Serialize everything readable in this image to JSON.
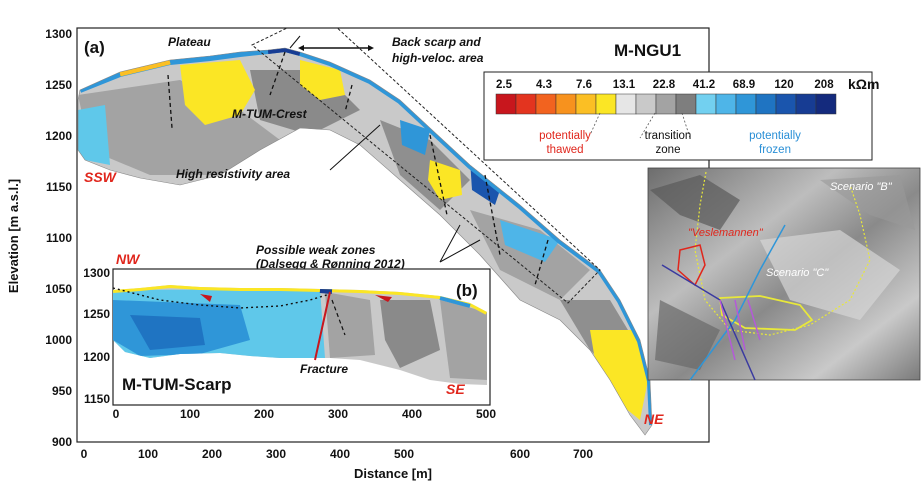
{
  "figure": {
    "panel_a": {
      "label": "(a)",
      "profile_name": "M-NGU1",
      "direction_left": "SSW",
      "direction_right": "NE",
      "xlabel": "Distance [m]",
      "ylabel": "Elevation [m a.s.l.]",
      "x_ticks": [
        "0",
        "100",
        "200",
        "300",
        "400",
        "500",
        "600",
        "700"
      ],
      "y_ticks": [
        "1300",
        "1250",
        "1200",
        "1150",
        "1100",
        "1050",
        "1000",
        "950",
        "900"
      ],
      "annotations": {
        "plateau": "Plateau",
        "back_scarp_1": "Back scarp and",
        "back_scarp_2": "high-veloc. area",
        "crest": "M-TUM-Crest",
        "high_res": "High resistivity area",
        "weak_1": "Possible weak zones",
        "weak_2": "(Dalsegg & Rønning 2012)"
      }
    },
    "panel_b": {
      "label": "(b)",
      "profile_name": "M-TUM-Scarp",
      "direction_left": "NW",
      "direction_right": "SE",
      "x_ticks": [
        "0",
        "100",
        "200",
        "300",
        "400",
        "500"
      ],
      "y_ticks": [
        "1300",
        "1250",
        "1200",
        "1150"
      ],
      "fracture": "Fracture"
    },
    "legend": {
      "unit": "kΩm",
      "values": [
        "2.5",
        "4.3",
        "7.6",
        "13.1",
        "22.8",
        "41.2",
        "68.9",
        "120",
        "208"
      ],
      "thawed_1": "potentially",
      "thawed_2": "thawed",
      "transition_1": "transition",
      "transition_2": "zone",
      "frozen_1": "potentially",
      "frozen_2": "frozen",
      "colors": [
        "#c8161d",
        "#e3341f",
        "#f2631f",
        "#f7921e",
        "#fbbf24",
        "#fbe625",
        "#e6e6e6",
        "#c9c9c9",
        "#a3a3a3",
        "#7e7e7e",
        "#72d0f0",
        "#4eb5e8",
        "#2f96d8",
        "#1f74c2",
        "#1a55ad",
        "#173c93",
        "#142a7d"
      ]
    },
    "map_inset": {
      "scenario_b": "Scenario \"B\"",
      "scenario_c": "Scenario \"C\"",
      "veslemannen": "\"Veslemannen\""
    }
  }
}
